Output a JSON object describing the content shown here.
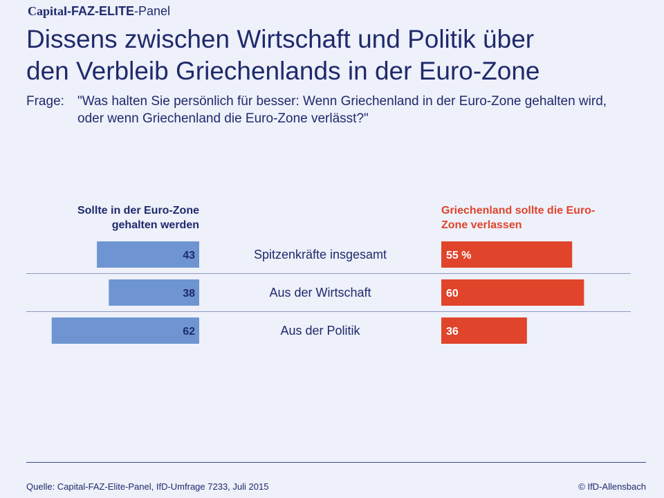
{
  "header": {
    "brand_capital": "Capital",
    "brand_faz": "-FAZ-ELITE",
    "brand_panel": "-Panel",
    "title_line1": "Dissens zwischen Wirtschaft und Politik über",
    "title_line2": "den Verbleib Griechenlands in der Euro-Zone",
    "question_label": "Frage:",
    "question_text": "\"Was halten Sie persönlich für besser: Wenn Griechenland in der Euro-Zone gehalten wird, oder wenn Griechenland die Euro-Zone verlässt?\""
  },
  "chart_data": {
    "type": "bar",
    "orientation": "diverging-horizontal",
    "categories": [
      "Spitzenkräfte insgesamt",
      "Aus der Wirtschaft",
      "Aus der Politik"
    ],
    "series": [
      {
        "name": "Sollte in der Euro-Zone gehalten werden",
        "values": [
          43,
          38,
          62
        ],
        "labels": [
          "43",
          "38",
          "62"
        ],
        "color": "#6e95d2",
        "label_color": "#1f2a6b",
        "direction": "left"
      },
      {
        "name": "Griechenland sollte die Euro-Zone verlassen",
        "values": [
          55,
          60,
          36
        ],
        "labels": [
          "55 %",
          "60",
          "36"
        ],
        "color": "#e0442b",
        "label_color": "#ffffff",
        "direction": "right"
      }
    ],
    "unit": "%",
    "xlim": [
      0,
      100
    ]
  },
  "legend": {
    "left": "Sollte in der Euro-Zone gehalten werden",
    "right": "Griechenland sollte die Euro-Zone verlassen"
  },
  "footer": {
    "source": "Quelle: Capital-FAZ-Elite-Panel, IfD-Umfrage 7233, Juli 2015",
    "copyright": "© IfD-Allensbach"
  }
}
